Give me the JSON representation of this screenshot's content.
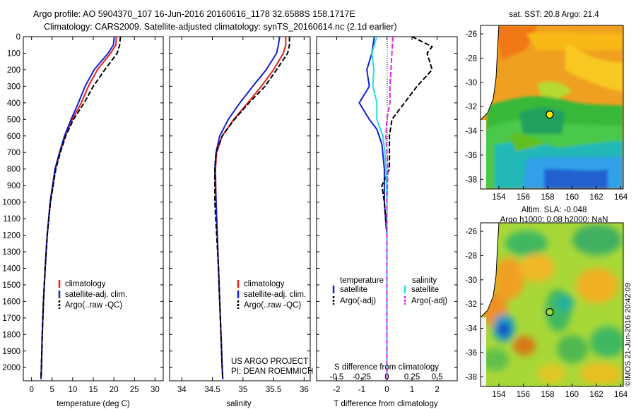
{
  "title": {
    "line1": "Argo profile: AO 5904370_107 16-Jun-2016 20160616_1178 32.6588S 158.1717E",
    "line2": "Climatology: CARS2009. Satellite-adjusted climatology: synTS_20160614.nc (2.1d earlier)"
  },
  "colors": {
    "climatology": "#e8201c",
    "satellite": "#1020d8",
    "argo": "#000000",
    "sal_sat": "#20e0e0",
    "sal_argo": "#e020e0"
  },
  "credit": {
    "line1": "US ARGO PROJECT",
    "line2": "PI: DEAN ROEMMICH"
  },
  "timestamp": "©IMOS 21-Jun-2016 20:42:09",
  "chart_data": [
    {
      "type": "line",
      "title": "",
      "xlabel": "temperature (deg C)",
      "ylabel": "",
      "xlim": [
        -2,
        32
      ],
      "ylim": [
        2080,
        0
      ],
      "xticks": [
        "0",
        "5",
        "10",
        "15",
        "20",
        "25",
        "30"
      ],
      "yticks": [
        "0",
        "100",
        "200",
        "300",
        "400",
        "500",
        "600",
        "700",
        "800",
        "900",
        "1000",
        "1100",
        "1200",
        "1300",
        "1400",
        "1500",
        "1600",
        "1700",
        "1800",
        "1900",
        "2000"
      ],
      "legend": [
        "climatology",
        "satellite-adj. clim.",
        "Argo(..raw -QC)"
      ],
      "series": [
        {
          "name": "climatology",
          "style": "solid",
          "color": "#e8201c",
          "depth": [
            0,
            50,
            100,
            200,
            300,
            400,
            500,
            600,
            700,
            800,
            1000,
            1200,
            1400,
            1600,
            1800,
            2000,
            2070
          ],
          "values": [
            20.6,
            20.5,
            19.2,
            16.0,
            13.8,
            12.1,
            9.9,
            8.2,
            6.9,
            5.8,
            4.6,
            3.8,
            3.3,
            2.9,
            2.6,
            2.4,
            2.3
          ]
        },
        {
          "name": "satellite-adj. clim.",
          "style": "solid",
          "color": "#1020d8",
          "depth": [
            0,
            50,
            100,
            200,
            300,
            400,
            500,
            600,
            700,
            800,
            1000,
            1200,
            1400,
            1600,
            1800,
            2000,
            2070
          ],
          "values": [
            20.1,
            19.9,
            18.6,
            15.2,
            13.0,
            11.4,
            9.6,
            8.0,
            6.8,
            5.7,
            4.5,
            3.8,
            3.3,
            2.9,
            2.6,
            2.4,
            2.3
          ]
        },
        {
          "name": "Argo(..raw -QC)",
          "style": "dashed",
          "color": "#000000",
          "depth": [
            0,
            50,
            100,
            200,
            300,
            400,
            500,
            600,
            700,
            800,
            1000,
            1200,
            1400,
            1600,
            1800,
            2000,
            2070
          ],
          "values": [
            21.6,
            21.4,
            20.8,
            17.8,
            15.0,
            12.8,
            10.2,
            8.3,
            7.0,
            5.9,
            4.6,
            3.8,
            3.3,
            2.9,
            2.6,
            2.4,
            2.3
          ]
        }
      ]
    },
    {
      "type": "line",
      "title": "",
      "xlabel": "salinity",
      "ylabel": "",
      "xlim": [
        33.8,
        36.1
      ],
      "ylim": [
        2080,
        0
      ],
      "xticks": [
        "34",
        "34.5",
        "35",
        "35.5",
        "36"
      ],
      "legend": [
        "climatology",
        "satellite-adj. clim.",
        "Argo(..raw -QC)"
      ],
      "series": [
        {
          "name": "climatology",
          "style": "solid",
          "color": "#e8201c",
          "depth": [
            0,
            50,
            100,
            200,
            300,
            400,
            500,
            600,
            700,
            800,
            1000,
            1200,
            1400,
            1600,
            1800,
            2000,
            2070
          ],
          "values": [
            35.7,
            35.7,
            35.66,
            35.5,
            35.3,
            35.08,
            34.85,
            34.66,
            34.57,
            34.55,
            34.56,
            34.58,
            34.6,
            34.62,
            34.64,
            34.66,
            34.67
          ]
        },
        {
          "name": "satellite-adj. clim.",
          "style": "solid",
          "color": "#1020d8",
          "depth": [
            0,
            50,
            100,
            200,
            300,
            400,
            500,
            600,
            700,
            800,
            1000,
            1200,
            1400,
            1600,
            1800,
            2000,
            2070
          ],
          "values": [
            35.6,
            35.58,
            35.55,
            35.38,
            35.16,
            34.95,
            34.76,
            34.62,
            34.56,
            34.54,
            34.56,
            34.58,
            34.6,
            34.62,
            34.64,
            34.66,
            34.67
          ]
        },
        {
          "name": "Argo(..raw -QC)",
          "style": "dashed",
          "color": "#000000",
          "depth": [
            0,
            50,
            100,
            200,
            300,
            400,
            500,
            600,
            700,
            800,
            1000,
            1200,
            1400,
            1600,
            1800,
            2000,
            2070
          ],
          "values": [
            35.76,
            35.76,
            35.73,
            35.55,
            35.36,
            35.1,
            34.86,
            34.66,
            34.56,
            34.54,
            34.54,
            34.57,
            34.6,
            34.62,
            34.64,
            34.66,
            34.67
          ]
        }
      ]
    },
    {
      "type": "line",
      "title": "",
      "xlabel": "T difference from climatology",
      "xlabel_top": "S difference from climatology",
      "ylabel": "",
      "xlim": [
        -2.8,
        2.8
      ],
      "ylim": [
        2080,
        0
      ],
      "xticks": [
        "-2",
        "-1",
        "0",
        "1",
        "2"
      ],
      "xticks_top": [
        "-0.5",
        "-0.25",
        "0",
        "0.25",
        "0.5"
      ],
      "legend_header": [
        "temperature",
        "salinity"
      ],
      "legend": [
        "satellite",
        "Argo(-adj)",
        "satellite",
        "Argo(-adj)"
      ],
      "series": [
        {
          "name": "temperature satellite",
          "style": "solid",
          "color": "#1020d8",
          "depth": [
            0,
            100,
            200,
            300,
            400,
            450,
            500,
            560,
            650,
            800,
            1000,
            1200,
            1500,
            1800,
            2070
          ],
          "values": [
            -0.5,
            -0.6,
            -0.8,
            -0.7,
            -1.1,
            -0.9,
            -0.7,
            -0.4,
            -0.2,
            -0.1,
            -0.1,
            0,
            0,
            0,
            0
          ]
        },
        {
          "name": "temperature Argo(-adj)",
          "style": "dashed",
          "color": "#000000",
          "depth": [
            0,
            60,
            100,
            200,
            300,
            400,
            500,
            600,
            700,
            800,
            900,
            1000,
            1200,
            1500,
            1800,
            2070
          ],
          "values": [
            1.0,
            1.8,
            1.6,
            1.8,
            1.2,
            0.7,
            0.2,
            0.1,
            0.1,
            0.1,
            -0.2,
            -0.1,
            0,
            0,
            0,
            0
          ]
        },
        {
          "name": "salinity satellite",
          "style": "solid",
          "color": "#20e0e0",
          "depth": [
            0,
            100,
            200,
            300,
            400,
            500,
            600,
            700,
            800,
            1000,
            1200,
            1500,
            1800,
            2070
          ],
          "values": [
            -0.1,
            -0.15,
            -0.13,
            -0.14,
            -0.1,
            -0.1,
            -0.04,
            -0.02,
            -0.01,
            0,
            0,
            0,
            0,
            0
          ]
        },
        {
          "name": "salinity Argo(-adj)",
          "style": "dashed",
          "color": "#e020e0",
          "depth": [
            0,
            100,
            200,
            300,
            400,
            500,
            600,
            700,
            800,
            1000,
            1200,
            1500,
            1800,
            2070
          ],
          "values": [
            0.06,
            0.05,
            0.04,
            0.03,
            0.03,
            0,
            -0.01,
            0,
            0.01,
            0,
            0,
            0,
            0,
            0
          ]
        }
      ]
    },
    {
      "type": "heatmap",
      "title": "sat. SST: 20.8  Argo: 21.4",
      "xlim": [
        152.5,
        164.2
      ],
      "ylim": [
        -38.8,
        -25.3
      ],
      "xticks": [
        "154",
        "156",
        "158",
        "160",
        "162",
        "164"
      ],
      "yticks": [
        "-26",
        "-28",
        "-30",
        "-32",
        "-34",
        "-36",
        "-38"
      ],
      "marker": {
        "lon": 158.17,
        "lat": -32.66
      }
    },
    {
      "type": "heatmap",
      "title": "Altim. SLA: -0.048",
      "subtitle": "Argo h1000: 0.08  h2000: NaN",
      "xlim": [
        152.5,
        164.2
      ],
      "ylim": [
        -38.8,
        -25.3
      ],
      "xticks": [
        "154",
        "156",
        "158",
        "160",
        "162",
        "164"
      ],
      "yticks": [
        "-26",
        "-28",
        "-30",
        "-32",
        "-34",
        "-36",
        "-38"
      ],
      "marker": {
        "lon": 158.17,
        "lat": -32.66
      }
    }
  ]
}
